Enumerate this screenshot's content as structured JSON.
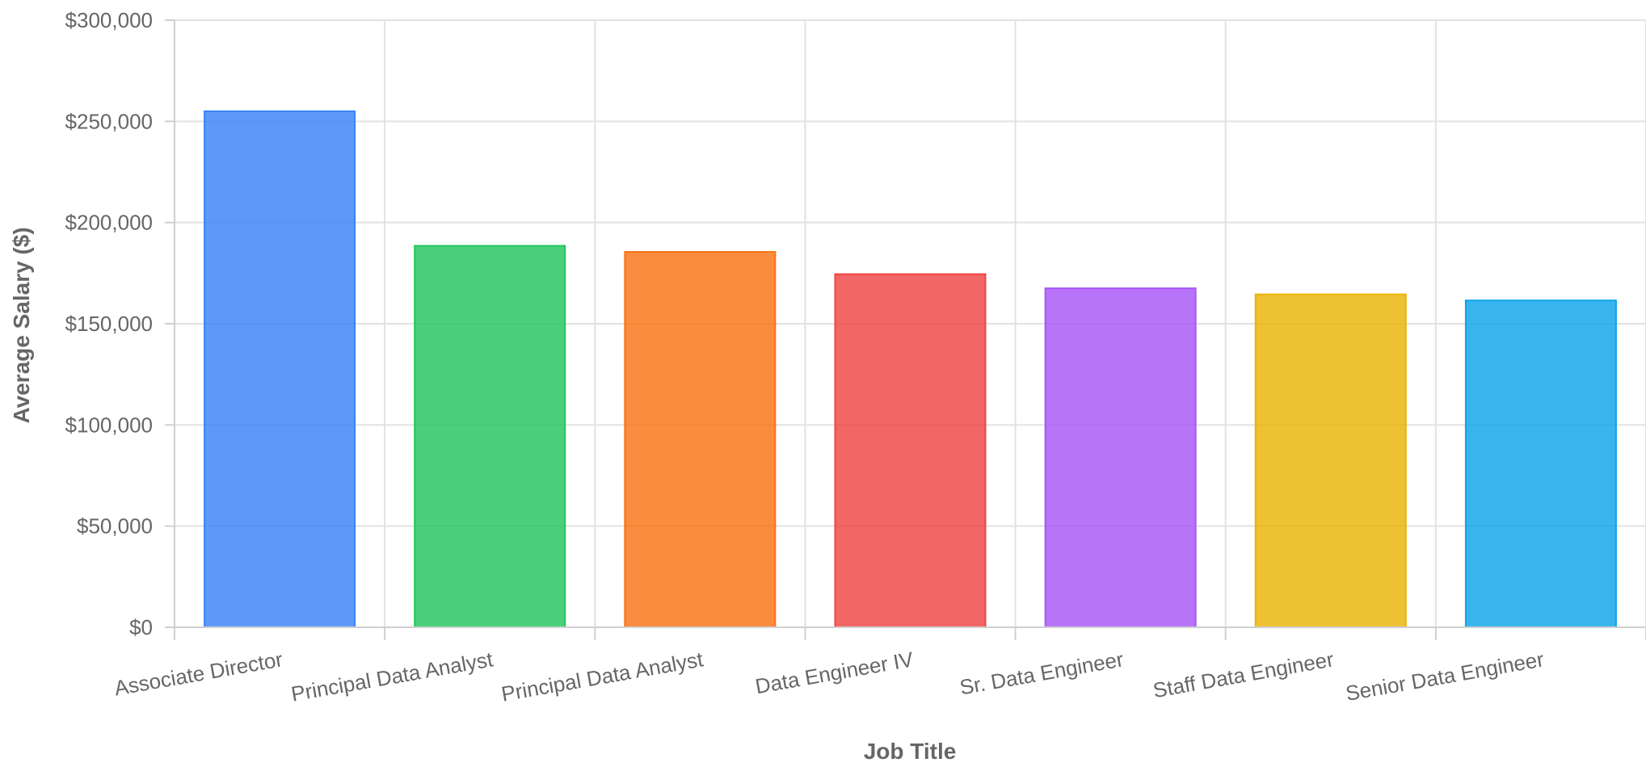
{
  "chart_data": {
    "type": "bar",
    "categories": [
      "Associate Director",
      "Principal Data Analyst",
      "Principal Data Analyst",
      "Data Engineer IV",
      "Sr. Data Engineer",
      "Staff Data Engineer",
      "Senior Data Engineer"
    ],
    "values": [
      255000,
      188500,
      185500,
      174500,
      167500,
      164500,
      161500
    ],
    "colors": [
      "#3b82f6",
      "#22c55e",
      "#f97316",
      "#ef4444",
      "#a855f7",
      "#eab308",
      "#0ea5e9"
    ],
    "xlabel": "Job Title",
    "ylabel": "Average Salary ($)",
    "ylim": [
      0,
      300000
    ],
    "yticks": [
      0,
      50000,
      100000,
      150000,
      200000,
      250000,
      300000
    ],
    "ytick_labels": [
      "$0",
      "$50,000",
      "$100,000",
      "$150,000",
      "$200,000",
      "$250,000",
      "$300,000"
    ],
    "grid": true,
    "legend": "none"
  }
}
